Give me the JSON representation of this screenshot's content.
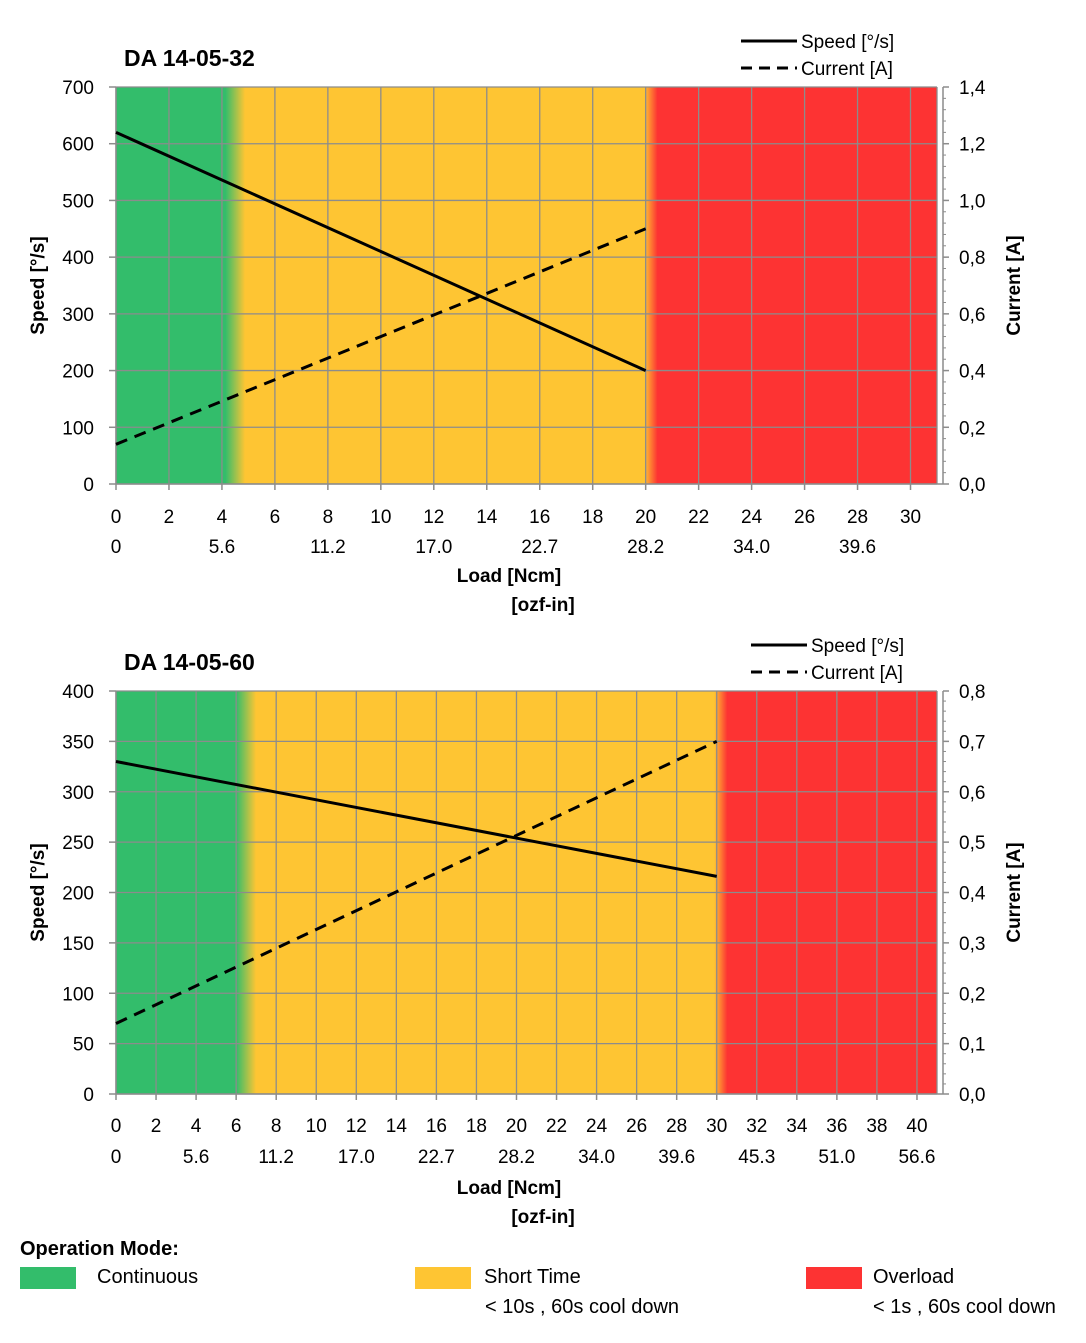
{
  "chart_data": [
    {
      "type": "line",
      "title": "DA 14-05-32",
      "xlabel": "Load [Ncm]",
      "xlabel2": "[ozf-in]",
      "ylabel": "Speed  [°/s]",
      "y2label": "Current [A]",
      "xlim": [
        0,
        31
      ],
      "ylim": [
        0,
        700
      ],
      "y2lim": [
        0,
        1.4
      ],
      "x_ticks": [
        "0",
        "2",
        "4",
        "6",
        "8",
        "10",
        "12",
        "14",
        "16",
        "18",
        "20",
        "22",
        "24",
        "26",
        "28",
        "30"
      ],
      "x2_ticks": [
        {
          "x": 0,
          "label": "0"
        },
        {
          "x": 4,
          "label": "5.6"
        },
        {
          "x": 8,
          "label": "11.2"
        },
        {
          "x": 12,
          "label": "17.0"
        },
        {
          "x": 16,
          "label": "22.7"
        },
        {
          "x": 20,
          "label": "28.2"
        },
        {
          "x": 24,
          "label": "34.0"
        },
        {
          "x": 28,
          "label": "39.6"
        }
      ],
      "y_ticks": [
        "0",
        "100",
        "200",
        "300",
        "400",
        "500",
        "600",
        "700"
      ],
      "y2_ticks": [
        "0,0",
        "0,2",
        "0,4",
        "0,6",
        "0,8",
        "1,0",
        "1,2",
        "1,4"
      ],
      "grid": true,
      "legend_position": "top-right",
      "zones": [
        {
          "mode": "continuous",
          "from": 0,
          "to": 4.5
        },
        {
          "mode": "short_time",
          "from": 4.5,
          "to": 20.2
        },
        {
          "mode": "overload",
          "from": 20.2,
          "to": 31
        }
      ],
      "series": [
        {
          "name": "Speed [°/s]",
          "axis": "left",
          "style": "solid",
          "x": [
            0,
            20
          ],
          "y": [
            620,
            200
          ]
        },
        {
          "name": "Current [A]",
          "axis": "right",
          "style": "dashed",
          "x": [
            0,
            20
          ],
          "y": [
            0.14,
            0.9
          ]
        }
      ]
    },
    {
      "type": "line",
      "title": "DA 14-05-60",
      "xlabel": "Load [Ncm]",
      "xlabel2": "[ozf-in]",
      "ylabel": "Speed  [°/s]",
      "y2label": "Current [A]",
      "xlim": [
        0,
        41
      ],
      "ylim": [
        0,
        400
      ],
      "y2lim": [
        0,
        0.8
      ],
      "x_ticks": [
        "0",
        "2",
        "4",
        "6",
        "8",
        "10",
        "12",
        "14",
        "16",
        "18",
        "20",
        "22",
        "24",
        "26",
        "28",
        "30",
        "32",
        "34",
        "36",
        "38",
        "40"
      ],
      "x2_ticks": [
        {
          "x": 0,
          "label": "0"
        },
        {
          "x": 4,
          "label": "5.6"
        },
        {
          "x": 8,
          "label": "11.2"
        },
        {
          "x": 12,
          "label": "17.0"
        },
        {
          "x": 16,
          "label": "22.7"
        },
        {
          "x": 20,
          "label": "28.2"
        },
        {
          "x": 24,
          "label": "34.0"
        },
        {
          "x": 28,
          "label": "39.6"
        },
        {
          "x": 32,
          "label": "45.3"
        },
        {
          "x": 36,
          "label": "51.0"
        },
        {
          "x": 40,
          "label": "56.6"
        }
      ],
      "y_ticks": [
        "0",
        "50",
        "100",
        "150",
        "200",
        "250",
        "300",
        "350",
        "400"
      ],
      "y2_ticks": [
        "0,0",
        "0,1",
        "0,2",
        "0,3",
        "0,4",
        "0,5",
        "0,6",
        "0,7",
        "0,8"
      ],
      "grid": true,
      "legend_position": "top-right",
      "zones": [
        {
          "mode": "continuous",
          "from": 0,
          "to": 6.5
        },
        {
          "mode": "short_time",
          "from": 6.5,
          "to": 30.2
        },
        {
          "mode": "overload",
          "from": 30.2,
          "to": 41
        }
      ],
      "series": [
        {
          "name": "Speed [°/s]",
          "axis": "left",
          "style": "solid",
          "x": [
            0,
            30
          ],
          "y": [
            330,
            216
          ]
        },
        {
          "name": "Current [A]",
          "axis": "right",
          "style": "dashed",
          "x": [
            0,
            30
          ],
          "y": [
            0.14,
            0.7
          ]
        }
      ]
    }
  ],
  "legend": {
    "title": "Operation Mode:",
    "items": [
      {
        "label": "Continuous",
        "sub": "",
        "color": "#33bd6b"
      },
      {
        "label": "Short Time",
        "sub": "< 10s , 60s cool down",
        "color": "#fec533"
      },
      {
        "label": "Overload",
        "sub": "< 1s , 60s cool down",
        "color": "#fd3333"
      }
    ]
  },
  "colors": {
    "continuous": "#33bd6b",
    "short_time": "#fec533",
    "overload": "#fd3333",
    "grid": "#8c8c8c",
    "line": "#000000"
  }
}
